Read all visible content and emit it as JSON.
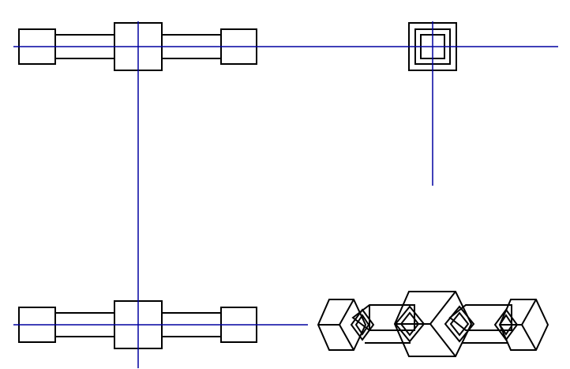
{
  "drawing": {
    "type": "orthographic-projection",
    "views": [
      "front",
      "side",
      "top",
      "isometric"
    ],
    "colors": {
      "background": "#ffffff",
      "object_line": "#000000",
      "center_line": "#0000a0"
    }
  }
}
